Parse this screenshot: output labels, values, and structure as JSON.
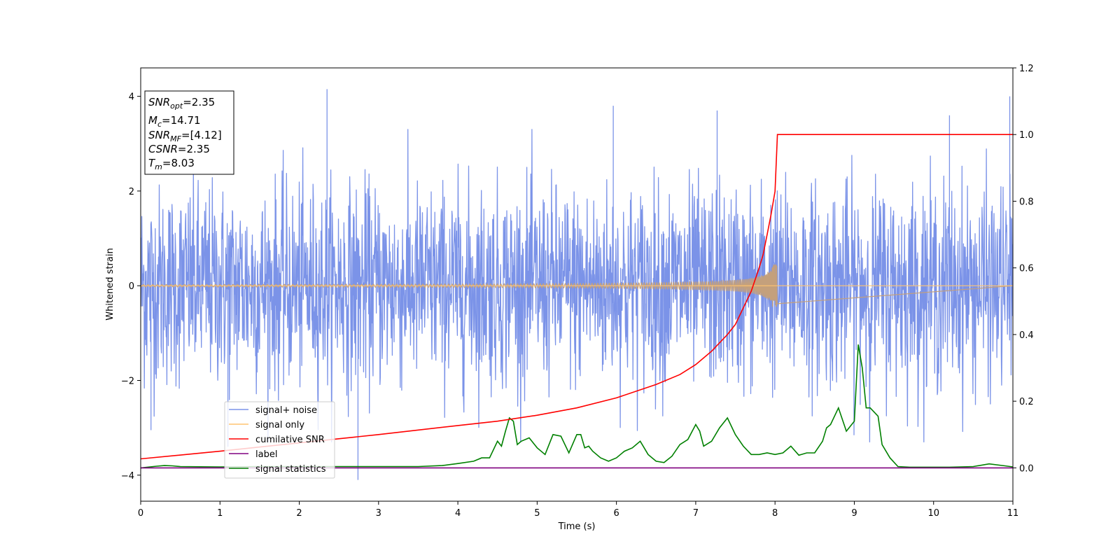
{
  "chart_data": {
    "type": "line",
    "xlabel": "Time (s)",
    "ylabel": "Whitened strain",
    "xlim": [
      0,
      11
    ],
    "ylim_left": [
      -4.55,
      4.6
    ],
    "ylim_right": [
      -0.1,
      1.2
    ],
    "x_ticks": [
      "0",
      "1",
      "2",
      "3",
      "4",
      "5",
      "6",
      "7",
      "8",
      "9",
      "10",
      "11"
    ],
    "y_ticks_left": [
      "−4",
      "−2",
      "0",
      "2",
      "4"
    ],
    "y_ticks_right": [
      "0.0",
      "0.2",
      "0.4",
      "0.6",
      "0.8",
      "1.0",
      "1.2"
    ],
    "info_box": {
      "snr_opt": {
        "sym": "SNR",
        "sub": "opt",
        "value": "=2.35"
      },
      "mc": {
        "sym": "M",
        "sub": "c",
        "value": "=14.71"
      },
      "snr_mf": {
        "sym": "SNR",
        "sub": "MF",
        "value": "=[4.12]"
      },
      "csnr": {
        "sym": "CSNR",
        "value": "=2.35"
      },
      "tm": {
        "sym": "T",
        "sub": "m",
        "value": "=8.03"
      }
    },
    "legend": {
      "placement": "lower-left",
      "entries": [
        {
          "label": "signal+ noise",
          "color": "#7b93e8"
        },
        {
          "label": "signal only",
          "color": "#ffc470"
        },
        {
          "label": "cumilative SNR",
          "color": "#ff0000"
        },
        {
          "label": "label",
          "color": "#800080"
        },
        {
          "label": "signal statistics",
          "color": "#008000"
        }
      ]
    },
    "series": [
      {
        "name": "signal+ noise",
        "axis": "left",
        "color": "#7b93e8",
        "description_noise_band": {
          "typical_abs": 2.0,
          "max_peaks": [
            [
              2.35,
              4.15
            ],
            [
              5.96,
              3.8
            ],
            [
              7.27,
              3.7
            ],
            [
              10.96,
              4.0
            ],
            [
              10.2,
              3.6
            ],
            [
              2.74,
              -4.1
            ],
            [
              1.1,
              -3.4
            ],
            [
              0.13,
              -3.05
            ]
          ]
        }
      },
      {
        "name": "signal only",
        "axis": "left",
        "color": "#ffc470",
        "chirp": {
          "t_merge": 8.03,
          "amp_end": 0.45
        }
      },
      {
        "name": "cumilative SNR",
        "axis": "right",
        "color": "#ff0000",
        "x": [
          0,
          1,
          2,
          3,
          4,
          4.5,
          5,
          5.5,
          6,
          6.5,
          6.8,
          7.0,
          7.2,
          7.4,
          7.5,
          7.6,
          7.7,
          7.8,
          7.85,
          7.9,
          7.95,
          8.0,
          8.03,
          11
        ],
        "y": [
          0.027,
          0.05,
          0.075,
          0.1,
          0.127,
          0.14,
          0.158,
          0.18,
          0.21,
          0.25,
          0.28,
          0.31,
          0.35,
          0.4,
          0.43,
          0.48,
          0.53,
          0.6,
          0.64,
          0.7,
          0.76,
          0.83,
          1.0,
          1.0
        ]
      },
      {
        "name": "label",
        "axis": "right",
        "color": "#800080",
        "x": [
          0,
          11
        ],
        "y": [
          0,
          0
        ]
      },
      {
        "name": "signal statistics",
        "axis": "right",
        "color": "#008000",
        "x": [
          0,
          0.2,
          0.3,
          0.4,
          0.5,
          1.0,
          1.5,
          2.0,
          2.5,
          3.0,
          3.5,
          3.8,
          4.0,
          4.2,
          4.3,
          4.4,
          4.5,
          4.55,
          4.6,
          4.65,
          4.7,
          4.75,
          4.8,
          4.9,
          5.0,
          5.1,
          5.2,
          5.3,
          5.4,
          5.5,
          5.55,
          5.6,
          5.65,
          5.7,
          5.8,
          5.9,
          6.0,
          6.1,
          6.2,
          6.3,
          6.4,
          6.5,
          6.6,
          6.7,
          6.8,
          6.9,
          7.0,
          7.05,
          7.1,
          7.2,
          7.3,
          7.4,
          7.5,
          7.6,
          7.7,
          7.8,
          7.9,
          8.0,
          8.1,
          8.2,
          8.3,
          8.4,
          8.5,
          8.6,
          8.65,
          8.7,
          8.8,
          8.9,
          9.0,
          9.05,
          9.1,
          9.15,
          9.2,
          9.3,
          9.35,
          9.45,
          9.55,
          9.7,
          9.9,
          10.2,
          10.5,
          10.7,
          10.9,
          11.0
        ],
        "y": [
          0.0,
          0.005,
          0.007,
          0.006,
          0.004,
          0.003,
          0.004,
          0.004,
          0.004,
          0.004,
          0.004,
          0.007,
          0.013,
          0.02,
          0.03,
          0.03,
          0.08,
          0.065,
          0.11,
          0.15,
          0.14,
          0.07,
          0.08,
          0.09,
          0.06,
          0.04,
          0.1,
          0.095,
          0.045,
          0.1,
          0.1,
          0.06,
          0.065,
          0.05,
          0.03,
          0.02,
          0.03,
          0.05,
          0.06,
          0.08,
          0.04,
          0.02,
          0.016,
          0.035,
          0.07,
          0.085,
          0.13,
          0.11,
          0.065,
          0.08,
          0.12,
          0.15,
          0.1,
          0.065,
          0.04,
          0.04,
          0.045,
          0.04,
          0.045,
          0.065,
          0.038,
          0.045,
          0.045,
          0.08,
          0.12,
          0.13,
          0.18,
          0.11,
          0.14,
          0.37,
          0.3,
          0.18,
          0.18,
          0.155,
          0.07,
          0.03,
          0.004,
          0.002,
          0.002,
          0.002,
          0.004,
          0.012,
          0.006,
          0.003
        ]
      }
    ]
  }
}
